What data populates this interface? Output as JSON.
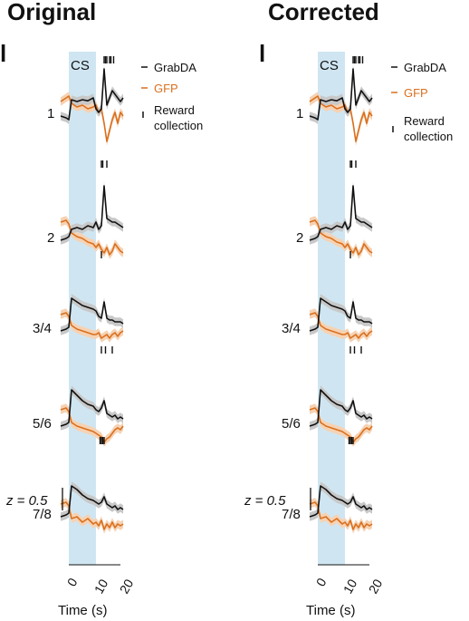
{
  "panels": [
    {
      "title": "Original",
      "panel_letter": "l",
      "cs_label": "CS",
      "scale_bar_label": "z = 0.5",
      "xlabel": "Time (s)",
      "x_ticks": [
        "0",
        "10",
        "20"
      ],
      "legend": {
        "grabda": "GrabDA",
        "gfp": "GFP",
        "reward_line1": "Reward",
        "reward_line2": "collection"
      },
      "session_labels": [
        "1",
        "2",
        "3/4",
        "5/6",
        "7/8"
      ]
    },
    {
      "title": "Corrected",
      "panel_letter": "l",
      "cs_label": "CS",
      "scale_bar_label": "z = 0.5",
      "xlabel": "Time (s)",
      "x_ticks": [
        "0",
        "10",
        "20"
      ],
      "legend": {
        "grabda": "GrabDA",
        "gfp": "GFP",
        "reward_line1": "Reward",
        "reward_line2": "collection"
      },
      "session_labels": [
        "1",
        "2",
        "3/4",
        "5/6",
        "7/8"
      ]
    }
  ],
  "colors": {
    "grabda": "#111111",
    "gfp": "#d9701f",
    "gfp_band": "#f6d2b3",
    "grabda_band": "#c8c8c8",
    "cs_shade": "#cfe6f2"
  },
  "chart_data": {
    "type": "line",
    "x_range": [
      -3,
      20
    ],
    "cs_window": [
      0,
      10
    ],
    "sessions": [
      {
        "label": "1",
        "reward_times": [
          13,
          13.5,
          14,
          15,
          15.5,
          16.5
        ],
        "x": [
          -3,
          -1,
          0,
          1,
          3,
          5,
          7,
          9,
          10,
          11,
          12,
          13,
          14,
          15,
          16,
          17,
          18,
          19,
          20
        ],
        "grabda": [
          0,
          -0.05,
          -0.1,
          0.45,
          0.4,
          0.45,
          0.42,
          0.5,
          0.2,
          0.1,
          0.2,
          1.3,
          0.3,
          0.5,
          0.7,
          0.6,
          0.5,
          0.4,
          0.5
        ],
        "gfp": [
          0.4,
          0.5,
          0.55,
          0.35,
          0.25,
          0.3,
          0.2,
          0.25,
          0.3,
          0.1,
          0.2,
          -0.2,
          -0.7,
          -0.4,
          -0.1,
          0.1,
          -0.2,
          0.1,
          0.0
        ]
      },
      {
        "label": "2",
        "reward_times": [
          12,
          12.5,
          14
        ],
        "x": [
          -3,
          -1,
          0,
          1,
          3,
          5,
          7,
          9,
          10,
          11,
          12,
          13,
          14,
          15,
          16,
          17,
          18,
          19,
          20
        ],
        "grabda": [
          0,
          0.05,
          0.1,
          0.3,
          0.35,
          0.3,
          0.4,
          0.35,
          0.5,
          0.3,
          0.4,
          1.5,
          0.6,
          0.55,
          0.5,
          0.5,
          0.45,
          0.4,
          0.35
        ],
        "gfp": [
          0.5,
          0.55,
          0.45,
          0.2,
          0.1,
          0.05,
          -0.05,
          -0.1,
          -0.2,
          -0.1,
          -0.25,
          -0.35,
          -0.2,
          -0.4,
          -0.3,
          -0.1,
          -0.2,
          -0.3,
          -0.35
        ]
      },
      {
        "label": "3/4",
        "reward_times": [
          12
        ],
        "x": [
          -3,
          -1,
          0,
          1,
          3,
          5,
          7,
          9,
          10,
          11,
          12,
          13,
          14,
          15,
          16,
          17,
          18,
          19,
          20
        ],
        "grabda": [
          0,
          0.05,
          0.1,
          0.9,
          0.8,
          0.7,
          0.65,
          0.6,
          0.55,
          0.4,
          0.35,
          0.8,
          0.35,
          0.3,
          0.3,
          0.25,
          0.25,
          0.25,
          0.2
        ],
        "gfp": [
          0.45,
          0.5,
          0.4,
          0.15,
          0.05,
          0.0,
          -0.05,
          -0.1,
          -0.1,
          -0.05,
          -0.2,
          -0.15,
          -0.1,
          -0.2,
          -0.1,
          -0.05,
          -0.15,
          -0.05,
          0.0
        ]
      },
      {
        "label": "5/6",
        "reward_times": [
          12,
          13.5,
          16
        ],
        "x": [
          -3,
          -1,
          0,
          1,
          3,
          5,
          7,
          9,
          10,
          11,
          12,
          13,
          14,
          15,
          16,
          17,
          18,
          19,
          20
        ],
        "grabda": [
          0,
          0.05,
          0.1,
          1.0,
          0.85,
          0.7,
          0.6,
          0.55,
          0.45,
          0.4,
          0.5,
          0.7,
          0.35,
          0.3,
          0.25,
          0.3,
          0.2,
          0.25,
          0.2
        ],
        "gfp": [
          0.45,
          0.5,
          0.4,
          0.1,
          0.0,
          -0.05,
          -0.1,
          -0.15,
          -0.2,
          -0.25,
          -0.3,
          -0.45,
          -0.35,
          -0.3,
          -0.2,
          -0.1,
          -0.05,
          -0.1,
          0.0
        ]
      },
      {
        "label": "7/8",
        "reward_times": [
          11.5,
          12,
          12.5,
          13
        ],
        "x": [
          -3,
          -1,
          0,
          1,
          3,
          5,
          7,
          9,
          10,
          11,
          12,
          13,
          14,
          15,
          16,
          17,
          18,
          19,
          20
        ],
        "grabda": [
          0,
          0.05,
          0.1,
          0.85,
          0.75,
          0.6,
          0.5,
          0.45,
          0.4,
          0.35,
          0.4,
          0.55,
          0.35,
          0.3,
          0.25,
          0.3,
          0.2,
          0.25,
          0.2
        ],
        "gfp": [
          0.35,
          0.4,
          0.3,
          -0.05,
          0.0,
          -0.15,
          -0.05,
          -0.2,
          -0.15,
          -0.25,
          -0.1,
          -0.35,
          -0.2,
          -0.3,
          -0.15,
          -0.3,
          -0.2,
          -0.25,
          -0.2
        ]
      }
    ]
  }
}
